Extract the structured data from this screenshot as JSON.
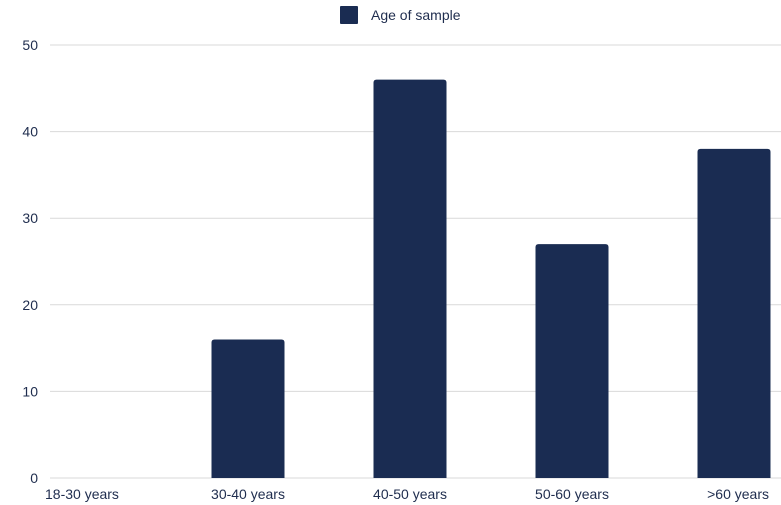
{
  "chart_data": {
    "type": "bar",
    "categories": [
      "18-30 years",
      "30-40 years",
      "40-50 years",
      "50-60 years",
      ">60 years"
    ],
    "series": [
      {
        "name": "Age of sample",
        "values": [
          0,
          16,
          46,
          27,
          38
        ],
        "color": "#1a2c52"
      }
    ],
    "ylim": [
      0,
      50
    ],
    "yticks": [
      0,
      10,
      20,
      30,
      40,
      50
    ],
    "xlabel": "",
    "ylabel": "",
    "grid": true,
    "legend_position": "top-center"
  },
  "colors": {
    "bar": "#1a2c52",
    "grid": "#d9d9d9",
    "text": "#1f2d4e"
  }
}
